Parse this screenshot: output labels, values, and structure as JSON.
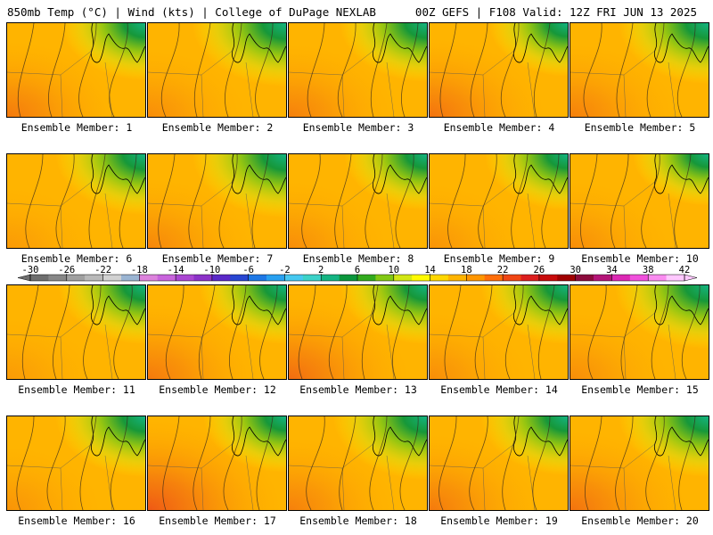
{
  "header": {
    "left": "850mb Temp (°C) | Wind (kts) | College of DuPage NEXLAB",
    "right": "00Z GEFS | F108 Valid: 12Z FRI JUN 13 2025"
  },
  "colorbar": {
    "ticks": [
      "-30",
      "-26",
      "-22",
      "-18",
      "-14",
      "-10",
      "-6",
      "-2",
      "2",
      "6",
      "10",
      "14",
      "18",
      "22",
      "26",
      "30",
      "34",
      "38",
      "42"
    ],
    "colors": [
      "#6e6e6e",
      "#878787",
      "#a0a0a0",
      "#b9b9b9",
      "#d2d2d2",
      "#9ab4d2",
      "#dc82dc",
      "#c864dc",
      "#aa46d2",
      "#8c32c8",
      "#5a28c8",
      "#2846d2",
      "#1e78e6",
      "#28a0f0",
      "#46c8f0",
      "#3cd2c8",
      "#14b482",
      "#0a963c",
      "#32aa1e",
      "#82c814",
      "#d2e614",
      "#fffa00",
      "#ffd700",
      "#ffb400",
      "#ff9600",
      "#ff6e0a",
      "#f04614",
      "#dc1e1e",
      "#c80a0a",
      "#a00000",
      "#8c0a3c",
      "#b41478",
      "#dc28b4",
      "#f050dc",
      "#fa8cf0",
      "#ffc8ff"
    ]
  },
  "panels": [
    {
      "label": "Ensemble Member: 1",
      "warm": 0.45,
      "cool": 0.32
    },
    {
      "label": "Ensemble Member: 2",
      "warm": 0.3,
      "cool": 0.45
    },
    {
      "label": "Ensemble Member: 3",
      "warm": 0.4,
      "cool": 0.35
    },
    {
      "label": "Ensemble Member: 4",
      "warm": 0.5,
      "cool": 0.25
    },
    {
      "label": "Ensemble Member: 5",
      "warm": 0.4,
      "cool": 0.4
    },
    {
      "label": "Ensemble Member: 6",
      "warm": 0.2,
      "cool": 0.4
    },
    {
      "label": "Ensemble Member: 7",
      "warm": 0.35,
      "cool": 0.45
    },
    {
      "label": "Ensemble Member: 8",
      "warm": 0.3,
      "cool": 0.3
    },
    {
      "label": "Ensemble Member: 9",
      "warm": 0.25,
      "cool": 0.3
    },
    {
      "label": "Ensemble Member: 10",
      "warm": 0.3,
      "cool": 0.2
    },
    {
      "label": "Ensemble Member: 11",
      "warm": 0.2,
      "cool": 0.35
    },
    {
      "label": "Ensemble Member: 12",
      "warm": 0.45,
      "cool": 0.35
    },
    {
      "label": "Ensemble Member: 13",
      "warm": 0.55,
      "cool": 0.35
    },
    {
      "label": "Ensemble Member: 14",
      "warm": 0.3,
      "cool": 0.35
    },
    {
      "label": "Ensemble Member: 15",
      "warm": 0.3,
      "cool": 0.45
    },
    {
      "label": "Ensemble Member: 16",
      "warm": 0.25,
      "cool": 0.4
    },
    {
      "label": "Ensemble Member: 17",
      "warm": 0.7,
      "cool": 0.3
    },
    {
      "label": "Ensemble Member: 18",
      "warm": 0.4,
      "cool": 0.45
    },
    {
      "label": "Ensemble Member: 19",
      "warm": 0.45,
      "cool": 0.35
    },
    {
      "label": "Ensemble Member: 20",
      "warm": 0.5,
      "cool": 0.4
    }
  ]
}
